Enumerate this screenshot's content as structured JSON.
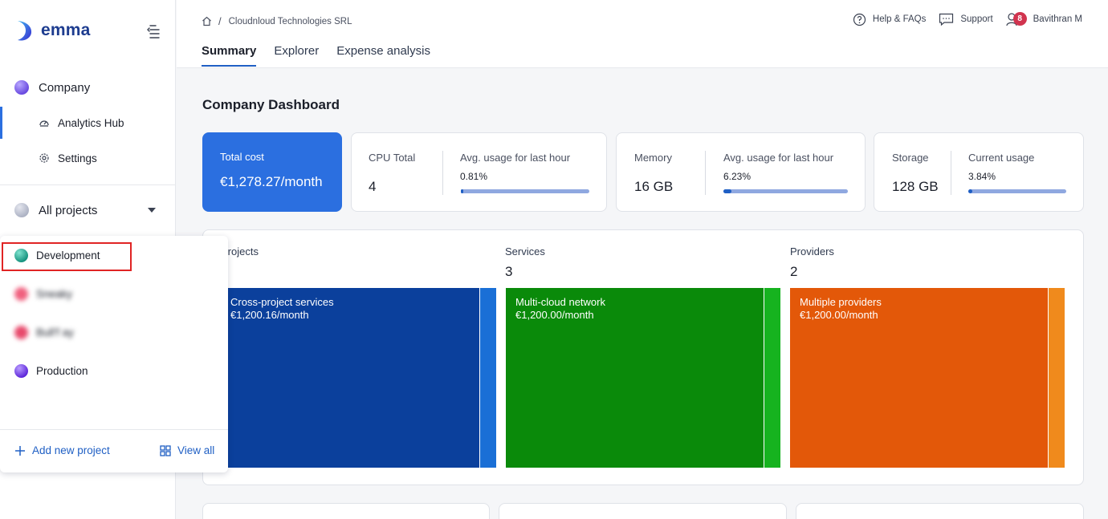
{
  "app": {
    "name": "emma"
  },
  "sidebar": {
    "company_label": "Company",
    "items": [
      {
        "label": "Analytics Hub",
        "icon": "gauge-icon"
      },
      {
        "label": "Settings",
        "icon": "gear-icon"
      }
    ],
    "all_projects_label": "All projects"
  },
  "projects_dropdown": {
    "items": [
      {
        "label": "Development",
        "color": "#1fb39a",
        "highlighted": true
      },
      {
        "label": "Sneaky",
        "color": "#f0607e",
        "blurred": true
      },
      {
        "label": "Bull'f ay",
        "color": "#e84a6c",
        "blurred": true
      },
      {
        "label": "Production",
        "color": "#6a3de8"
      }
    ],
    "add_label": "Add new project",
    "view_all_label": "View all"
  },
  "header": {
    "breadcrumb": "Cloudnloud Technologies SRL",
    "help_label": "Help & FAQs",
    "support_label": "Support",
    "user_name": "Bavithran M",
    "notification_count": "8",
    "tabs": [
      {
        "label": "Summary",
        "active": true
      },
      {
        "label": "Explorer"
      },
      {
        "label": "Expense analysis"
      }
    ]
  },
  "dashboard": {
    "title": "Company Dashboard",
    "total_cost": {
      "label": "Total cost",
      "value": "€1,278.27/month"
    },
    "cpu": {
      "label": "CPU Total",
      "value": "4",
      "usage_label": "Avg. usage for last hour",
      "usage_value": "0.81%",
      "usage_fraction": 0.0081
    },
    "memory": {
      "label": "Memory",
      "value": "16 GB",
      "usage_label": "Avg. usage for last hour",
      "usage_value": "6.23%",
      "usage_fraction": 0.0623
    },
    "storage": {
      "label": "Storage",
      "value": "128 GB",
      "usage_label": "Current usage",
      "usage_value": "3.84%",
      "usage_fraction": 0.0384
    },
    "breakdown": {
      "projects": {
        "title": "Projects",
        "count": "",
        "block_label": "Cross-project services",
        "block_value": "€1,200.16/month",
        "color": "#0b409c",
        "accent": "#1a6fd6"
      },
      "services": {
        "title": "Services",
        "count": "3",
        "block_label": "Multi-cloud network",
        "block_value": "€1,200.00/month",
        "color": "#0a8a0a",
        "accent": "#16b31f"
      },
      "providers": {
        "title": "Providers",
        "count": "2",
        "block_label": "Multiple providers",
        "block_value": "€1,200.00/month",
        "color": "#e35809",
        "accent": "#f08a1c"
      }
    }
  }
}
